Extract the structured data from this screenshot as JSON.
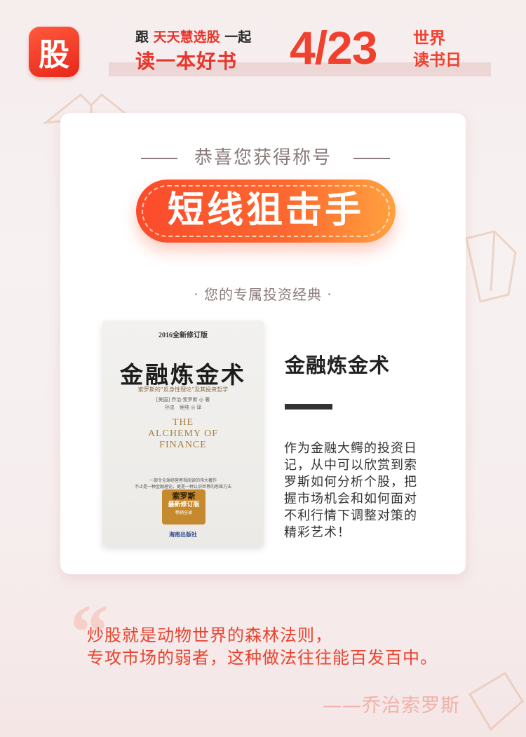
{
  "header": {
    "logo_char": "股",
    "line1_prefix": "跟",
    "line1_app": "天天慧选股",
    "line1_suffix": "一起",
    "line2": "读一本好书",
    "date": "4/23",
    "world": "世界",
    "day": "读书日"
  },
  "card": {
    "congrats": "恭喜您获得称号",
    "title": "短线狙击手",
    "subhead": "· 您的专属投资经典 ·"
  },
  "book_cover": {
    "edition": "2016全新修订版",
    "title": "金融炼金术",
    "subtitle": "索罗斯的“反身性理论”及其投资哲学",
    "author_line1": "[美国] 乔治·索罗斯 ◎ 著",
    "author_line2": "孙忠　侯纯 ◎ 译",
    "english_1": "THE",
    "english_2": "ALCHEMY OF",
    "english_3": "FINANCE",
    "tagline_1": "一部令全球经营者视阅读的伟大著作",
    "tagline_2": "不止是一种金融理论，更是一种认识世界的思维方法",
    "badge_1": "索罗斯",
    "badge_2": "最新修订版",
    "badge_3": "畅销全球",
    "publisher": "海南出版社"
  },
  "book": {
    "name": "金融炼金术",
    "description": "作为金融大鳄的投资日记，从中可以欣赏到索罗斯如何分析个股，把握市场机会和如何面对不利行情下调整对策的精彩艺术！"
  },
  "quote": {
    "mark": "“",
    "line1": "炒股就是动物世界的森林法则，",
    "line2": "专攻市场的弱者，这种做法往往能百发百中。",
    "author": "——乔治索罗斯"
  },
  "colors": {
    "accent": "#e8342a",
    "pill_start": "#fb4a2c",
    "pill_end": "#ffa23f"
  }
}
